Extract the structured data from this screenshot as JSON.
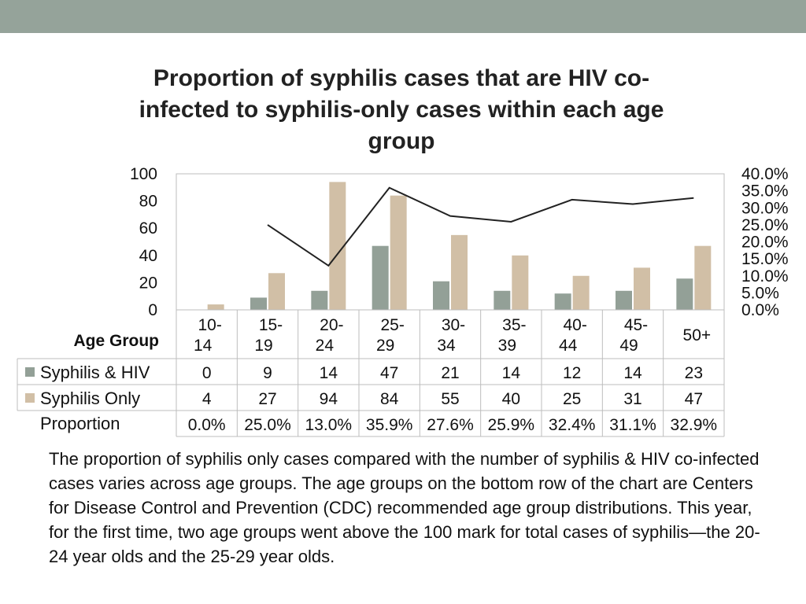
{
  "chart_data": {
    "type": "bar",
    "title_lines": [
      "Proportion of syphilis cases that are HIV co-",
      "infected to syphilis-only cases within each age",
      "group"
    ],
    "xlabel": "Age Group",
    "categories": [
      [
        "10-",
        "14"
      ],
      [
        "15-",
        "19"
      ],
      [
        "20-",
        "24"
      ],
      [
        "25-",
        "29"
      ],
      [
        "30-",
        "34"
      ],
      [
        "35-",
        "39"
      ],
      [
        "40-",
        "44"
      ],
      [
        "45-",
        "49"
      ],
      [
        "50+"
      ]
    ],
    "series": [
      {
        "name": "Syphilis & HIV",
        "values": [
          0,
          9,
          14,
          47,
          21,
          14,
          12,
          14,
          23
        ],
        "color": "#93a097"
      },
      {
        "name": "Syphilis Only",
        "values": [
          4,
          27,
          94,
          84,
          55,
          40,
          25,
          31,
          47
        ],
        "color": "#d1bfa6"
      }
    ],
    "line_series": {
      "name": "Proportion",
      "values": [
        0.0,
        25.0,
        13.0,
        35.9,
        27.6,
        25.9,
        32.4,
        31.1,
        32.9
      ],
      "labels": [
        "0.0%",
        "25.0%",
        "13.0%",
        "35.9%",
        "27.6%",
        "25.9%",
        "32.4%",
        "31.1%",
        "32.9%"
      ],
      "color": "#222222"
    },
    "ylim": [
      0,
      100
    ],
    "yticks": [
      "0",
      "20",
      "40",
      "60",
      "80",
      "100"
    ],
    "y2lim": [
      0,
      40
    ],
    "y2ticks": [
      "0.0%",
      "5.0%",
      "10.0%",
      "15.0%",
      "20.0%",
      "25.0%",
      "30.0%",
      "35.0%",
      "40.0%"
    ],
    "grid": false,
    "legend": "data-table"
  },
  "caption": "The proportion of syphilis only cases compared with the number of syphilis & HIV co-infected cases varies across age groups. The age groups on the bottom row of the chart are Centers for Disease Control and Prevention (CDC) recommended age group distributions. This year, for the first time, two age groups went above the 100 mark for total cases of syphilis—the 20-24 year olds and the 25-29 year olds."
}
